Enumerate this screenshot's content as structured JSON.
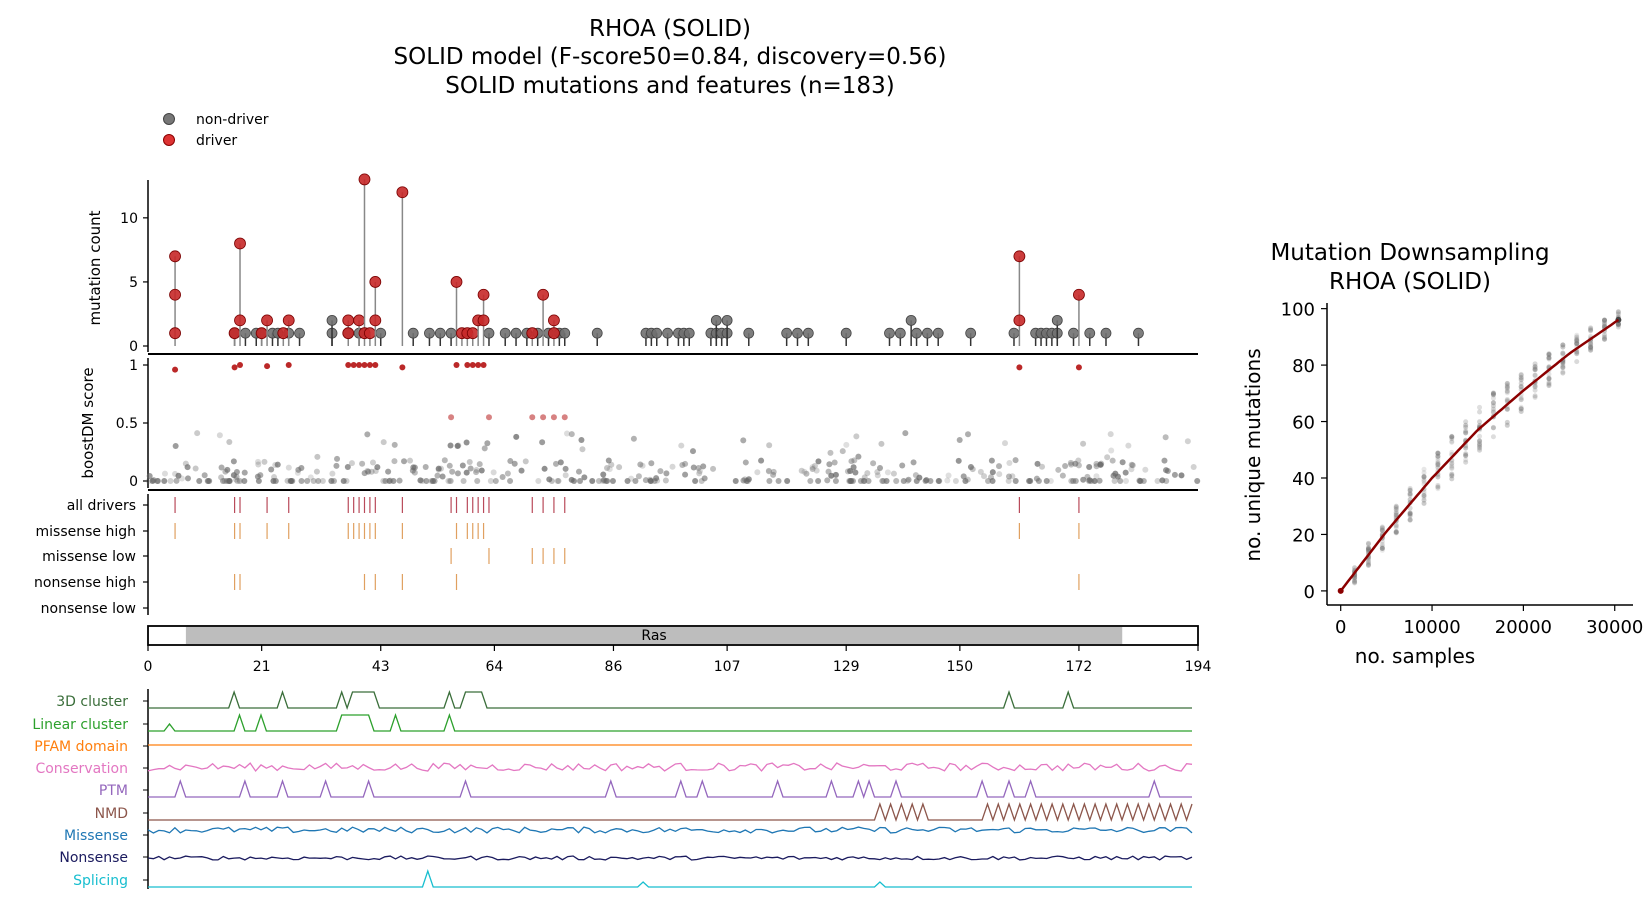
{
  "titles": {
    "main_line1": "RHOA (SOLID)",
    "main_line2": "SOLID model (F-score50=0.84, discovery=0.56)",
    "main_line3": "SOLID mutations and features (n=183)",
    "right_line1": "Mutation Downsampling",
    "right_line2": "RHOA (SOLID)"
  },
  "legend": [
    {
      "label": "non-driver",
      "color": "#666666"
    },
    {
      "label": "driver",
      "color": "#c62828"
    }
  ],
  "colors": {
    "driver": "#b71c1c",
    "nondriver": "#555555",
    "stem": "#999999",
    "track_driver": "#b94a5a",
    "track_orange": "#e0a060",
    "domain": "#bdbdbd",
    "fit_line": "#8b0000"
  },
  "chart_data": [
    {
      "type": "scatter",
      "name": "lollipop",
      "ylabel": "mutation count",
      "xlim": [
        0,
        194
      ],
      "ylim": [
        0,
        13
      ],
      "yticks": [
        0,
        5,
        10
      ],
      "drivers": [
        {
          "x": 5,
          "counts": [
            1,
            4,
            7
          ]
        },
        {
          "x": 16,
          "counts": [
            1
          ]
        },
        {
          "x": 17,
          "counts": [
            2,
            8
          ]
        },
        {
          "x": 21,
          "counts": [
            1
          ]
        },
        {
          "x": 22,
          "counts": [
            2
          ]
        },
        {
          "x": 25,
          "counts": [
            1
          ]
        },
        {
          "x": 26,
          "counts": [
            2
          ]
        },
        {
          "x": 37,
          "counts": [
            1,
            2
          ]
        },
        {
          "x": 39,
          "counts": [
            2
          ]
        },
        {
          "x": 40,
          "counts": [
            1,
            13
          ]
        },
        {
          "x": 41,
          "counts": [
            1
          ]
        },
        {
          "x": 42,
          "counts": [
            2,
            5
          ]
        },
        {
          "x": 47,
          "counts": [
            12
          ]
        },
        {
          "x": 57,
          "counts": [
            5
          ]
        },
        {
          "x": 58,
          "counts": [
            1
          ]
        },
        {
          "x": 59,
          "counts": [
            1
          ]
        },
        {
          "x": 60,
          "counts": [
            1
          ]
        },
        {
          "x": 61,
          "counts": [
            2
          ]
        },
        {
          "x": 62,
          "counts": [
            2,
            4
          ]
        },
        {
          "x": 71,
          "counts": [
            1
          ]
        },
        {
          "x": 73,
          "counts": [
            4
          ]
        },
        {
          "x": 75,
          "counts": [
            1,
            2
          ]
        },
        {
          "x": 161,
          "counts": [
            2,
            7
          ]
        },
        {
          "x": 172,
          "counts": [
            4
          ]
        }
      ],
      "nondrivers": [
        {
          "x": 16,
          "count": 1
        },
        {
          "x": 18,
          "count": 1
        },
        {
          "x": 20,
          "count": 1
        },
        {
          "x": 21,
          "count": 1
        },
        {
          "x": 23,
          "count": 1
        },
        {
          "x": 24,
          "count": 1
        },
        {
          "x": 26,
          "count": 1
        },
        {
          "x": 28,
          "count": 1
        },
        {
          "x": 34,
          "count": 1
        },
        {
          "x": 34,
          "count": 2
        },
        {
          "x": 37,
          "count": 1
        },
        {
          "x": 39,
          "count": 1
        },
        {
          "x": 43,
          "count": 1
        },
        {
          "x": 49,
          "count": 1
        },
        {
          "x": 52,
          "count": 1
        },
        {
          "x": 54,
          "count": 1
        },
        {
          "x": 56,
          "count": 1
        },
        {
          "x": 63,
          "count": 1
        },
        {
          "x": 66,
          "count": 1
        },
        {
          "x": 68,
          "count": 1
        },
        {
          "x": 70,
          "count": 1
        },
        {
          "x": 72,
          "count": 1
        },
        {
          "x": 74,
          "count": 1
        },
        {
          "x": 76,
          "count": 1
        },
        {
          "x": 77,
          "count": 1
        },
        {
          "x": 83,
          "count": 1
        },
        {
          "x": 92,
          "count": 1
        },
        {
          "x": 93,
          "count": 1
        },
        {
          "x": 94,
          "count": 1
        },
        {
          "x": 96,
          "count": 1
        },
        {
          "x": 98,
          "count": 1
        },
        {
          "x": 99,
          "count": 1
        },
        {
          "x": 100,
          "count": 1
        },
        {
          "x": 104,
          "count": 1
        },
        {
          "x": 105,
          "count": 1
        },
        {
          "x": 105,
          "count": 2
        },
        {
          "x": 106,
          "count": 1
        },
        {
          "x": 107,
          "count": 1
        },
        {
          "x": 107,
          "count": 2
        },
        {
          "x": 111,
          "count": 1
        },
        {
          "x": 118,
          "count": 1
        },
        {
          "x": 120,
          "count": 1
        },
        {
          "x": 122,
          "count": 1
        },
        {
          "x": 129,
          "count": 1
        },
        {
          "x": 137,
          "count": 1
        },
        {
          "x": 139,
          "count": 1
        },
        {
          "x": 141,
          "count": 2
        },
        {
          "x": 142,
          "count": 1
        },
        {
          "x": 144,
          "count": 1
        },
        {
          "x": 146,
          "count": 1
        },
        {
          "x": 152,
          "count": 1
        },
        {
          "x": 160,
          "count": 1
        },
        {
          "x": 164,
          "count": 1
        },
        {
          "x": 165,
          "count": 1
        },
        {
          "x": 166,
          "count": 1
        },
        {
          "x": 167,
          "count": 1
        },
        {
          "x": 168,
          "count": 1
        },
        {
          "x": 168,
          "count": 2
        },
        {
          "x": 171,
          "count": 1
        },
        {
          "x": 174,
          "count": 1
        },
        {
          "x": 177,
          "count": 1
        },
        {
          "x": 183,
          "count": 1
        }
      ]
    },
    {
      "type": "scatter",
      "name": "boostdm",
      "ylabel": "boostDM score",
      "xlim": [
        0,
        194
      ],
      "ylim": [
        0,
        1
      ],
      "yticks": [
        0,
        0.5,
        1
      ],
      "drivers": [
        {
          "x": 5,
          "y": 0.96
        },
        {
          "x": 16,
          "y": 0.98
        },
        {
          "x": 17,
          "y": 1.0
        },
        {
          "x": 22,
          "y": 0.99
        },
        {
          "x": 26,
          "y": 1.0
        },
        {
          "x": 37,
          "y": 1.0
        },
        {
          "x": 38,
          "y": 1.0
        },
        {
          "x": 39,
          "y": 1.0
        },
        {
          "x": 40,
          "y": 1.0
        },
        {
          "x": 41,
          "y": 1.0
        },
        {
          "x": 42,
          "y": 1.0
        },
        {
          "x": 47,
          "y": 0.98
        },
        {
          "x": 57,
          "y": 1.0
        },
        {
          "x": 59,
          "y": 1.0
        },
        {
          "x": 60,
          "y": 1.0
        },
        {
          "x": 61,
          "y": 1.0
        },
        {
          "x": 62,
          "y": 1.0
        },
        {
          "x": 56,
          "y": 0.55
        },
        {
          "x": 63,
          "y": 0.55
        },
        {
          "x": 71,
          "y": 0.55
        },
        {
          "x": 73,
          "y": 0.55
        },
        {
          "x": 75,
          "y": 0.55
        },
        {
          "x": 77,
          "y": 0.55
        },
        {
          "x": 161,
          "y": 0.98
        },
        {
          "x": 172,
          "y": 0.98
        }
      ],
      "nondriver_points": 400
    },
    {
      "type": "table",
      "name": "driver_tracks",
      "rows": [
        {
          "label": "all drivers",
          "positions": [
            5,
            16,
            17,
            22,
            26,
            37,
            38,
            39,
            40,
            41,
            42,
            47,
            56,
            57,
            59,
            60,
            61,
            62,
            63,
            71,
            73,
            75,
            77,
            161,
            172
          ],
          "color": "#b94a5a"
        },
        {
          "label": "missense high",
          "positions": [
            5,
            16,
            17,
            22,
            26,
            37,
            38,
            39,
            40,
            41,
            42,
            47,
            57,
            59,
            60,
            61,
            62,
            161,
            172
          ],
          "color": "#e0a060"
        },
        {
          "label": "missense low",
          "positions": [
            56,
            63,
            71,
            73,
            75,
            77
          ],
          "color": "#e0a060"
        },
        {
          "label": "nonsense high",
          "positions": [
            16,
            17,
            40,
            42,
            47,
            57,
            172
          ],
          "color": "#e0a060"
        },
        {
          "label": "nonsense low",
          "positions": [],
          "color": "#e0a060"
        }
      ]
    },
    {
      "type": "bar",
      "name": "domain_axis",
      "xlim": [
        0,
        194
      ],
      "xticks": [
        0,
        21,
        43,
        64,
        86,
        107,
        129,
        150,
        172,
        194
      ],
      "domains": [
        {
          "label": "Ras",
          "start": 7,
          "end": 180
        }
      ]
    },
    {
      "type": "line",
      "name": "features",
      "xlim": [
        0,
        194
      ],
      "series": [
        {
          "name": "3D cluster",
          "color": "#3a6e3a",
          "kind": "peaks",
          "peaks": [
            16,
            25,
            36,
            56
          ],
          "plateaus": [
            [
              38,
              42
            ],
            [
              59,
              62
            ]
          ],
          "extra_peaks": [
            160,
            171
          ]
        },
        {
          "name": "Linear cluster",
          "color": "#2ca02c",
          "kind": "peaks",
          "peaks": [
            4,
            17,
            21,
            46,
            56
          ],
          "plateaus": [
            [
              36,
              41
            ]
          ],
          "extra_peaks": []
        },
        {
          "name": "PFAM domain",
          "color": "#ff7f0e",
          "kind": "flat"
        },
        {
          "name": "Conservation",
          "color": "#e377c2",
          "kind": "noise"
        },
        {
          "name": "PTM",
          "color": "#9467bd",
          "kind": "peaks",
          "peaks": [
            6,
            18,
            25,
            33,
            41,
            59,
            86,
            99,
            103,
            117,
            127,
            132,
            134,
            139,
            155,
            160,
            164,
            187
          ],
          "plateaus": [],
          "extra_peaks": []
        },
        {
          "name": "NMD",
          "color": "#8c564b",
          "kind": "zigzag",
          "ranges": [
            [
              136,
              145
            ],
            [
              155,
              194
            ]
          ]
        },
        {
          "name": "Missense",
          "color": "#1f77b4",
          "kind": "noise"
        },
        {
          "name": "Nonsense",
          "color": "#1a1a5e",
          "kind": "noise"
        },
        {
          "name": "Splicing",
          "color": "#17becf",
          "kind": "peaks",
          "peaks": [
            52,
            92,
            136
          ],
          "plateaus": [],
          "extra_peaks": []
        }
      ]
    },
    {
      "type": "scatter",
      "name": "downsampling",
      "xlabel": "no. samples",
      "ylabel": "no. unique mutations",
      "xlim": [
        -1500,
        32000
      ],
      "ylim": [
        -5,
        102
      ],
      "xticks": [
        0,
        10000,
        20000,
        30000
      ],
      "yticks": [
        0,
        20,
        40,
        60,
        80,
        100
      ],
      "fit": {
        "x": [
          0,
          5000,
          10000,
          15000,
          20000,
          25000,
          30400
        ],
        "y": [
          0,
          21,
          40,
          57,
          71,
          84,
          96
        ]
      }
    }
  ]
}
